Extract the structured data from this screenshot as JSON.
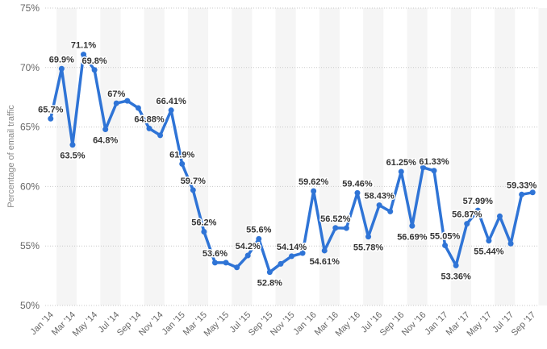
{
  "chart_data": {
    "type": "line",
    "ylabel": "Percentage of email traffic",
    "ylim": [
      50,
      75
    ],
    "yticks": [
      "50%",
      "55%",
      "60%",
      "65%",
      "70%",
      "75%"
    ],
    "x": [
      "Jan '14",
      "Feb '14",
      "Mar '14",
      "Apr '14",
      "May '14",
      "Jun '14",
      "Jul '14",
      "Aug '14",
      "Sep '14",
      "Oct '14",
      "Nov '14",
      "Dec '14",
      "Jan '15",
      "Feb '15",
      "Mar '15",
      "Apr '15",
      "May '15",
      "Jun '15",
      "Jul '15",
      "Aug '15",
      "Sep '15",
      "Oct '15",
      "Nov '15",
      "Dec '15",
      "Jan '16",
      "Feb '16",
      "Mar '16",
      "Apr '16",
      "May '16",
      "Jun '16",
      "Jul '16",
      "Aug '16",
      "Sep '16",
      "Oct '16",
      "Nov '16",
      "Dec '16",
      "Jan '17",
      "Feb '17",
      "Mar '17",
      "Apr '17",
      "May '17",
      "Jun '17",
      "Jul '17",
      "Aug '17",
      "Sep '17"
    ],
    "xtick_labels": [
      "Jan '14",
      "Mar '14",
      "May '14",
      "Jul '14",
      "Sep '14",
      "Nov '14",
      "Jan '15",
      "Mar '15",
      "May '15",
      "Jul '15",
      "Sep '15",
      "Nov '15",
      "Jan '16",
      "Mar '16",
      "May '16",
      "Jul '16",
      "Sep '16",
      "Nov '16",
      "Jan '17",
      "Mar '17",
      "May '17",
      "Jul '17",
      "Sep '17"
    ],
    "series": [
      {
        "values": [
          65.7,
          69.9,
          63.5,
          71.1,
          69.8,
          64.8,
          67,
          67.2,
          66.6,
          64.88,
          64.3,
          66.41,
          61.9,
          59.7,
          56.2,
          53.6,
          53.6,
          53.2,
          54.2,
          55.6,
          52.8,
          53.5,
          54.14,
          54.4,
          59.62,
          54.61,
          56.52,
          56.5,
          59.46,
          55.78,
          58.43,
          57.9,
          61.25,
          56.69,
          61.6,
          61.33,
          55.05,
          53.36,
          56.87,
          57.99,
          55.44,
          57.5,
          55.2,
          59.33,
          59.5
        ],
        "labels": [
          "65.7%",
          "69.9%",
          "63.5%",
          "71.1%",
          "69.8%",
          "64.8%",
          "67%",
          "",
          "",
          "64.88%",
          "",
          "66.41%",
          "61.9%",
          "59.7%",
          "56.2%",
          "53.6%",
          "",
          "",
          "54.2%",
          "55.6%",
          "52.8%",
          "",
          "54.14%",
          "",
          "59.62%",
          "54.61%",
          "56.52%",
          "",
          "59.46%",
          "55.78%",
          "58.43%",
          "",
          "61.25%",
          "56.69%",
          "",
          "61.33%",
          "55.05%",
          "53.36%",
          "56.87%",
          "57.99%",
          "55.44%",
          "",
          "",
          "59.33%",
          ""
        ],
        "color": "#2f74d6"
      }
    ],
    "grid": true,
    "legend": "none"
  }
}
